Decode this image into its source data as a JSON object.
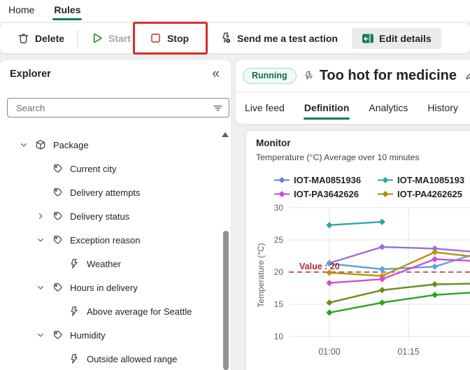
{
  "topnav": {
    "items": [
      {
        "label": "Home",
        "active": false
      },
      {
        "label": "Rules",
        "active": true
      }
    ]
  },
  "toolbar": {
    "delete_label": "Delete",
    "start_label": "Start",
    "stop_label": "Stop",
    "test_action_label": "Send me a test action",
    "edit_details_label": "Edit details",
    "annotation_color": "#d92c2c",
    "icons": [
      "trash-icon",
      "play-icon",
      "stop-square-icon",
      "test-action-icon",
      "edit-details-icon"
    ]
  },
  "explorer": {
    "title": "Explorer",
    "collapse_icon": "«",
    "search_placeholder": "Search",
    "tree": [
      {
        "label": "Package",
        "icon": "package",
        "chevron": "down",
        "level": 0
      },
      {
        "label": "Current city",
        "icon": "tag",
        "chevron": "none",
        "level": 1
      },
      {
        "label": "Delivery attempts",
        "icon": "tag",
        "chevron": "none",
        "level": 1
      },
      {
        "label": "Delivery status",
        "icon": "tag",
        "chevron": "right",
        "level": 1
      },
      {
        "label": "Exception reason",
        "icon": "tag",
        "chevron": "down",
        "level": 1
      },
      {
        "label": "Weather",
        "icon": "rule",
        "chevron": "none",
        "level": 2
      },
      {
        "label": "Hours in delivery",
        "icon": "tag",
        "chevron": "down",
        "level": 1
      },
      {
        "label": "Above average for Seattle",
        "icon": "rule",
        "chevron": "none",
        "level": 2
      },
      {
        "label": "Humidity",
        "icon": "tag",
        "chevron": "down",
        "level": 1
      },
      {
        "label": "Outside allowed range",
        "icon": "rule",
        "chevron": "none",
        "level": 2
      }
    ]
  },
  "main": {
    "status_badge": "Running",
    "title": "Too hot for medicine",
    "accent_color": "#0f7a60",
    "badge_colors": {
      "bg": "#f1faf6",
      "border": "#a5ddc6",
      "text": "#0e6a53"
    },
    "tabs": [
      {
        "label": "Live feed",
        "active": false
      },
      {
        "label": "Definition",
        "active": true
      },
      {
        "label": "Analytics",
        "active": false
      },
      {
        "label": "History",
        "active": false
      }
    ]
  },
  "chart_data": {
    "type": "line",
    "title": "Monitor",
    "subtitle": "Temperature (°C) Average over 10 minutes",
    "ylabel": "Temperature (°C)",
    "yticks": [
      10,
      15,
      20,
      25,
      30
    ],
    "ylim": [
      8.7,
      30.6
    ],
    "xlim_minutes": [
      52.3,
      86.8
    ],
    "xticks": [
      {
        "label": "01:00",
        "min": 60
      },
      {
        "label": "01:15",
        "min": 75
      }
    ],
    "grid": true,
    "threshold": {
      "value": 20,
      "label": "Value : 20",
      "color": "#b12a2e"
    },
    "legend_position": "top",
    "legend": [
      {
        "name": "IOT-MA0851936",
        "color": "#6a7fe0"
      },
      {
        "name": "IOT-MA1085193",
        "color": "#2fa8a4"
      },
      {
        "name": "IOT-PA3642626",
        "color": "#bc4fce"
      },
      {
        "name": "IOT-PA4262625",
        "color": "#ab8e0b"
      }
    ],
    "series": [
      {
        "name": "teal",
        "color": "#2fa8a4",
        "x": [
          60,
          70
        ],
        "y": [
          27.3,
          27.8
        ],
        "markers": 2
      },
      {
        "name": "purple",
        "color": "#9b6fd9",
        "x": [
          60,
          70,
          80,
          86.8
        ],
        "y": [
          21.4,
          23.9,
          23.65,
          23.2
        ],
        "markers": 3
      },
      {
        "name": "lightblue",
        "color": "#58a2e8",
        "x": [
          60,
          70,
          80,
          86.8
        ],
        "y": [
          21.3,
          20.45,
          20.85,
          22.6
        ],
        "markers": 3
      },
      {
        "name": "olive",
        "color": "#b9940c",
        "x": [
          60,
          70,
          80,
          86.8
        ],
        "y": [
          19.9,
          19.4,
          23.1,
          22.45
        ],
        "markers": 3
      },
      {
        "name": "magenta",
        "color": "#d14fd1",
        "x": [
          60,
          70,
          80,
          86.8
        ],
        "y": [
          18.3,
          18.9,
          22.0,
          21.75
        ],
        "markers": 3
      },
      {
        "name": "darkolive",
        "color": "#6f8c1e",
        "x": [
          60,
          70,
          80,
          86.8
        ],
        "y": [
          15.25,
          17.2,
          18.1,
          18.2
        ],
        "markers": 3
      },
      {
        "name": "green",
        "color": "#27a427",
        "x": [
          60,
          70,
          80,
          86.8
        ],
        "y": [
          13.7,
          15.25,
          16.45,
          16.8
        ],
        "markers": 3
      }
    ]
  }
}
